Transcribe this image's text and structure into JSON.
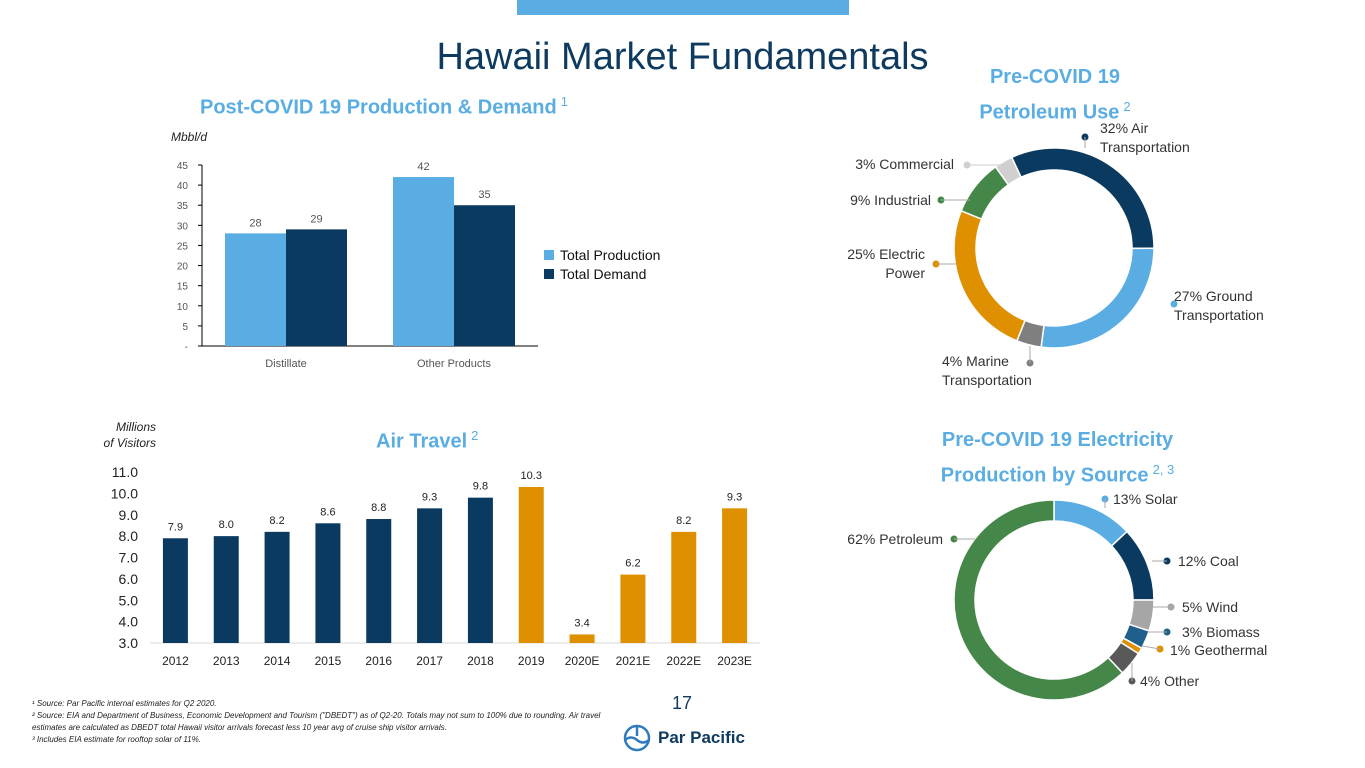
{
  "page": {
    "title": "Hawaii Market Fundamentals",
    "page_number": "17",
    "brand": "Par Pacific",
    "footnotes": [
      "¹ Source: Par Pacific internal estimates for Q2 2020.",
      "² Source: EIA and Department of Business, Economic Development and Tourism (\"DBEDT\") as of Q2-20.  Totals may not sum to 100% due to rounding. Air travel estimates are calculated as DBEDT total Hawaii visitor arrivals forecast less 10 year avg of cruise ship visitor arrivals.",
      "³ Includes EIA estimate for rooftop solar of 11%."
    ]
  },
  "colors": {
    "light_blue": "#5aade2",
    "navy": "#0b3a60",
    "orange": "#de9000",
    "green": "#458748",
    "grey": "#7f7f7f",
    "light_grey": "#d0d0d0"
  },
  "chart_data": [
    {
      "type": "bar",
      "title": "Post-COVID 19 Production & Demand",
      "title_sup": "1",
      "ylabel": "Mbbl/d",
      "categories": [
        "Distillate",
        "Other Products"
      ],
      "series": [
        {
          "name": "Total Production",
          "values": [
            28,
            42
          ],
          "color": "#5aade2"
        },
        {
          "name": "Total Demand",
          "values": [
            29,
            35
          ],
          "color": "#0b3a60"
        }
      ],
      "ylim": [
        0,
        45
      ],
      "yticks": [
        "-",
        "5",
        "10",
        "15",
        "20",
        "25",
        "30",
        "35",
        "40",
        "45"
      ],
      "legend": "right"
    },
    {
      "type": "pie",
      "title": "Pre-COVID 19 Petroleum Use",
      "title_lines": [
        "Pre-COVID 19",
        "Petroleum Use"
      ],
      "title_sup": "2",
      "slices": [
        {
          "label": "32% Air Transportation",
          "lines": [
            "32% Air",
            "Transportation"
          ],
          "value": 32,
          "color": "#0b3a60"
        },
        {
          "label": "27% Ground Transportation",
          "lines": [
            "27% Ground",
            "Transportation"
          ],
          "value": 27,
          "color": "#5aade2"
        },
        {
          "label": "4% Marine Transportation",
          "lines": [
            "4% Marine",
            "Transportation"
          ],
          "value": 4,
          "color": "#7f7f7f"
        },
        {
          "label": "25% Electric Power",
          "lines": [
            "25% Electric",
            "Power"
          ],
          "value": 25,
          "color": "#de9000"
        },
        {
          "label": "9% Industrial",
          "lines": [
            "9% Industrial"
          ],
          "value": 9,
          "color": "#458748"
        },
        {
          "label": "3% Commercial",
          "lines": [
            "3% Commercial"
          ],
          "value": 3,
          "color": "#d0d0d0"
        }
      ]
    },
    {
      "type": "bar",
      "title": "Air Travel",
      "title_sup": "2",
      "ylabel": "Millions of Visitors",
      "ylabel_lines": [
        "Millions",
        "of Visitors"
      ],
      "categories": [
        "2012",
        "2013",
        "2014",
        "2015",
        "2016",
        "2017",
        "2018",
        "2019",
        "2020E",
        "2021E",
        "2022E",
        "2023E"
      ],
      "values": [
        7.9,
        8.0,
        8.2,
        8.6,
        8.8,
        9.3,
        9.8,
        10.3,
        3.4,
        6.2,
        8.2,
        9.3
      ],
      "value_labels": [
        "7.9",
        "8.0",
        "8.2",
        "8.6",
        "8.8",
        "9.3",
        "9.8",
        "10.3",
        "3.4",
        "6.2",
        "8.2",
        "9.3"
      ],
      "colors": [
        "#0b3a60",
        "#0b3a60",
        "#0b3a60",
        "#0b3a60",
        "#0b3a60",
        "#0b3a60",
        "#0b3a60",
        "#de9000",
        "#de9000",
        "#de9000",
        "#de9000",
        "#de9000"
      ],
      "ylim": [
        3.0,
        11.0
      ],
      "yticks": [
        "3.0",
        "4.0",
        "5.0",
        "6.0",
        "7.0",
        "8.0",
        "9.0",
        "10.0",
        "11.0"
      ]
    },
    {
      "type": "pie",
      "title": "Pre-COVID 19 Electricity Production by Source",
      "title_lines": [
        "Pre-COVID 19 Electricity",
        "Production by Source"
      ],
      "title_sup": "2, 3",
      "slices": [
        {
          "label": "13% Solar",
          "value": 13,
          "color": "#5aade2"
        },
        {
          "label": "12% Coal",
          "value": 12,
          "color": "#0b3a60"
        },
        {
          "label": "5% Wind",
          "value": 5,
          "color": "#a6a6a6"
        },
        {
          "label": "3% Biomass",
          "value": 3,
          "color": "#1f5f8b"
        },
        {
          "label": "1% Geothermal",
          "value": 1,
          "color": "#de9000"
        },
        {
          "label": "4% Other",
          "value": 4,
          "color": "#595959"
        },
        {
          "label": "62% Petroleum",
          "value": 62,
          "color": "#458748"
        }
      ]
    }
  ]
}
